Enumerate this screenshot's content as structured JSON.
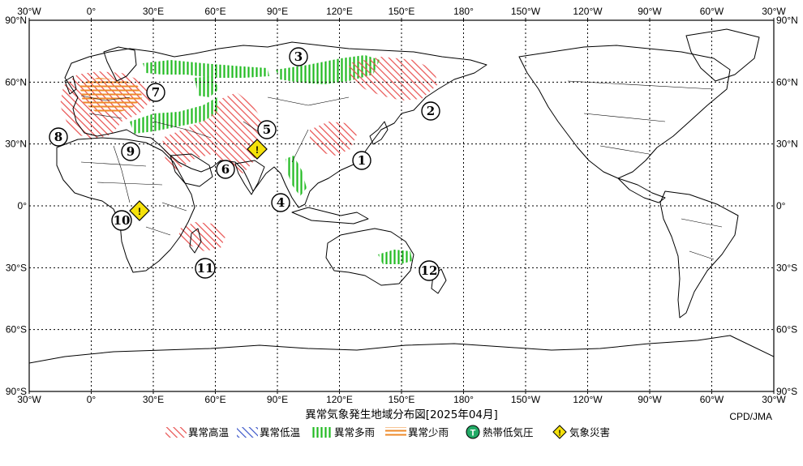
{
  "title": "異常気象発生地域分布図[2025年04月]",
  "credit": "CPD/JMA",
  "lon_ticks": [
    "30°W",
    "0°",
    "30°E",
    "60°E",
    "90°E",
    "120°E",
    "150°E",
    "180°",
    "150°W",
    "120°W",
    "90°W",
    "60°W",
    "30°W"
  ],
  "lat_ticks": [
    "90°N",
    "60°N",
    "30°N",
    "0°",
    "30°S",
    "60°S",
    "90°S"
  ],
  "legend": [
    {
      "key": "warm",
      "label": "異常高温",
      "color": "#e8504f"
    },
    {
      "key": "cold",
      "label": "異常低温",
      "color": "#3a55c8"
    },
    {
      "key": "wet",
      "label": "異常多雨",
      "color": "#22bb22"
    },
    {
      "key": "dry",
      "label": "異常少雨",
      "color": "#ee8a2a"
    },
    {
      "key": "cyclone",
      "label": "熱帯低気圧",
      "icon": "T",
      "color": "#22aa66"
    },
    {
      "key": "disaster",
      "label": "気象災害",
      "icon": "!",
      "color": "#f5e10a"
    }
  ],
  "markers": [
    {
      "id": 1,
      "label": "1"
    },
    {
      "id": 2,
      "label": "2"
    },
    {
      "id": 3,
      "label": "3"
    },
    {
      "id": 4,
      "label": "4"
    },
    {
      "id": 5,
      "label": "5"
    },
    {
      "id": 6,
      "label": "6"
    },
    {
      "id": 7,
      "label": "7"
    },
    {
      "id": 8,
      "label": "8"
    },
    {
      "id": 9,
      "label": "9"
    },
    {
      "id": 10,
      "label": "10"
    },
    {
      "id": 11,
      "label": "11"
    },
    {
      "id": 12,
      "label": "12"
    }
  ],
  "disaster_icons": [
    {
      "region": "South Asia",
      "symbol": "!"
    },
    {
      "region": "Central Africa",
      "symbol": "!"
    }
  ]
}
